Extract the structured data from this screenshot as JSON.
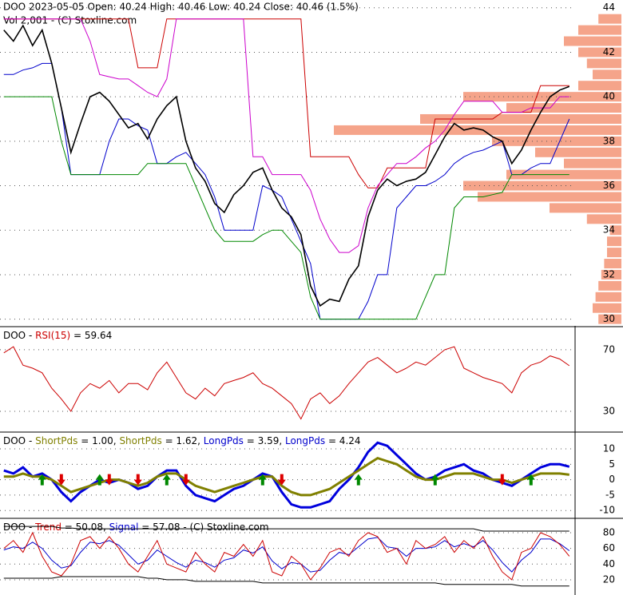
{
  "chart_data": [
    {
      "type": "line",
      "title": "DOO  2023-05-05 Open: 40.24  High: 40.46  Low: 40.24  Close: 40.46 (1.5%)",
      "subtitle": "Vol 2,001  -  (C) Stoxline.com",
      "x": [
        0,
        1,
        2,
        3,
        4,
        5,
        6,
        7,
        8,
        9,
        10,
        11,
        12,
        13,
        14,
        15,
        16,
        17,
        18,
        19,
        20,
        21,
        22,
        23,
        24,
        25,
        26,
        27,
        28,
        29,
        30,
        31,
        32,
        33,
        34,
        35,
        36,
        37,
        38,
        39,
        40,
        41,
        42,
        43,
        44,
        45,
        46,
        47,
        48,
        49,
        50,
        51,
        52,
        53,
        54,
        55,
        56,
        57,
        58,
        59
      ],
      "xlim": [
        -0.4,
        59.6
      ],
      "ylim": [
        29.7,
        44.35
      ],
      "yticks": [
        30,
        32,
        34,
        36,
        38,
        40,
        42,
        44
      ],
      "grid": true,
      "volume_profile": {
        "color": "#f5a48a",
        "lim": [
          0,
          100
        ],
        "levels": [
          30,
          30.5,
          31,
          31.5,
          32,
          32.5,
          33,
          33.5,
          34,
          34.5,
          35,
          35.5,
          36,
          36.5,
          37,
          37.5,
          38,
          38.5,
          39,
          39.5,
          40,
          40.5,
          41,
          41.5,
          42,
          42.5,
          43,
          43.5
        ],
        "values": [
          8,
          10,
          9,
          8,
          7,
          6,
          5,
          5,
          4,
          12,
          25,
          50,
          55,
          40,
          20,
          30,
          45,
          100,
          70,
          40,
          55,
          15,
          10,
          12,
          15,
          20,
          15,
          8
        ]
      },
      "series": [
        {
          "color": "#cc0000",
          "width": 1,
          "values": [
            43.5,
            43.5,
            43.5,
            43.5,
            43.5,
            43.5,
            43.5,
            43.5,
            43.5,
            43.5,
            43.5,
            43.5,
            43.5,
            43.5,
            41.3,
            41.3,
            41.3,
            43.5,
            43.5,
            43.5,
            43.5,
            43.5,
            43.5,
            43.5,
            43.5,
            43.5,
            43.5,
            43.5,
            43.5,
            43.5,
            43.5,
            43.5,
            37.3,
            37.3,
            37.3,
            37.3,
            37.3,
            36.5,
            35.9,
            35.9,
            36.8,
            36.8,
            36.8,
            36.8,
            36.8,
            39,
            39,
            39,
            39,
            39,
            39,
            39,
            39.3,
            39.3,
            39.3,
            39.3,
            40.5,
            40.5,
            40.5,
            40.5
          ]
        },
        {
          "color": "#cc00cc",
          "width": 1,
          "values": [
            43.5,
            43.5,
            43.5,
            43.5,
            43.5,
            43.5,
            43.5,
            43.5,
            43.5,
            42.5,
            41,
            40.9,
            40.8,
            40.8,
            40.5,
            40.2,
            40,
            40.8,
            43.5,
            43.5,
            43.5,
            43.5,
            43.5,
            43.5,
            43.5,
            43.5,
            37.3,
            37.3,
            36.5,
            36.5,
            36.5,
            36.5,
            35.8,
            34.5,
            33.6,
            33,
            33,
            33.3,
            35,
            36,
            36.5,
            37,
            37,
            37.3,
            37.7,
            38,
            38.5,
            39.2,
            39.8,
            39.8,
            39.8,
            39.8,
            39.3,
            39.3,
            39.3,
            39.5,
            39.5,
            39.5,
            40,
            40
          ]
        },
        {
          "color": "#0000cc",
          "width": 1,
          "values": [
            41,
            41,
            41.2,
            41.3,
            41.5,
            41.5,
            39.5,
            36.5,
            36.5,
            36.5,
            36.5,
            38,
            39,
            39,
            38.7,
            38.5,
            37,
            37,
            37.3,
            37.5,
            37,
            36.5,
            35.5,
            34,
            34,
            34,
            34,
            36,
            35.8,
            35.5,
            34.5,
            33.5,
            32.5,
            30,
            30,
            30,
            30,
            30,
            30.8,
            32,
            32,
            35,
            35.5,
            36,
            36,
            36.2,
            36.5,
            37,
            37.3,
            37.5,
            37.6,
            37.8,
            38,
            36.5,
            36.5,
            36.8,
            37,
            37,
            38,
            39
          ]
        },
        {
          "color": "#008800",
          "width": 1,
          "values": [
            40,
            40,
            40,
            40,
            40,
            40,
            38,
            36.5,
            36.5,
            36.5,
            36.5,
            36.5,
            36.5,
            36.5,
            36.5,
            37,
            37,
            37,
            37,
            37,
            36,
            35,
            34,
            33.5,
            33.5,
            33.5,
            33.5,
            33.8,
            34,
            34,
            33.5,
            33,
            31,
            30,
            30,
            30,
            30,
            30,
            30,
            30,
            30,
            30,
            30,
            30,
            31,
            32,
            32,
            35,
            35.5,
            35.5,
            35.5,
            35.6,
            35.7,
            36.5,
            36.5,
            36.5,
            36.5,
            36.5,
            36.5,
            36.5
          ]
        },
        {
          "color": "#000000",
          "width": 1.6,
          "values": [
            43,
            42.5,
            43.2,
            42.3,
            43,
            41.5,
            39.5,
            37.5,
            38.8,
            40,
            40.2,
            39.8,
            39.2,
            38.6,
            38.8,
            38.1,
            39,
            39.6,
            40,
            38,
            36.8,
            36.2,
            35.2,
            34.8,
            35.6,
            36,
            36.6,
            36.8,
            35.8,
            35,
            34.6,
            33.8,
            31.5,
            30.6,
            30.9,
            30.8,
            31.8,
            32.4,
            34.6,
            35.8,
            36.3,
            36,
            36.2,
            36.3,
            36.6,
            37.4,
            38.2,
            38.8,
            38.5,
            38.6,
            38.5,
            38.2,
            38,
            37,
            37.6,
            38.5,
            39.3,
            40,
            40.3,
            40.46
          ]
        }
      ]
    },
    {
      "type": "line",
      "header": [
        {
          "text": "DOO - ",
          "color": "#000000"
        },
        {
          "text": "RSI(15)",
          "color": "#cc0000"
        },
        {
          "text": " = 59.64",
          "color": "#000000"
        }
      ],
      "x": [
        0,
        1,
        2,
        3,
        4,
        5,
        6,
        7,
        8,
        9,
        10,
        11,
        12,
        13,
        14,
        15,
        16,
        17,
        18,
        19,
        20,
        21,
        22,
        23,
        24,
        25,
        26,
        27,
        28,
        29,
        30,
        31,
        32,
        33,
        34,
        35,
        36,
        37,
        38,
        39,
        40,
        41,
        42,
        43,
        44,
        45,
        46,
        47,
        48,
        49,
        50,
        51,
        52,
        53,
        54,
        55,
        56,
        57,
        58,
        59
      ],
      "xlim": [
        -0.4,
        59.6
      ],
      "ylim": [
        17,
        84.5
      ],
      "yticks": [
        30,
        70
      ],
      "grid": true,
      "series": [
        {
          "color": "#cc0000",
          "width": 1,
          "values": [
            68,
            72,
            60,
            58,
            55,
            45,
            38,
            30,
            42,
            48,
            45,
            50,
            42,
            48,
            48,
            44,
            55,
            62,
            52,
            42,
            38,
            45,
            40,
            48,
            50,
            52,
            55,
            48,
            45,
            40,
            35,
            25,
            38,
            42,
            35,
            40,
            48,
            55,
            62,
            65,
            60,
            55,
            58,
            62,
            60,
            65,
            70,
            72,
            58,
            55,
            52,
            50,
            48,
            42,
            55,
            60,
            62,
            66,
            64,
            59.64
          ]
        }
      ]
    },
    {
      "type": "line",
      "header": [
        {
          "text": "DOO - ",
          "color": "#000000"
        },
        {
          "text": "ShortPds",
          "color": "#808000"
        },
        {
          "text": " = 1.00, ",
          "color": "#000000"
        },
        {
          "text": "ShortPds",
          "color": "#808000"
        },
        {
          "text": " = 1.62, ",
          "color": "#000000"
        },
        {
          "text": "LongPds",
          "color": "#0000cc"
        },
        {
          "text": " = 3.59, ",
          "color": "#000000"
        },
        {
          "text": "LongPds",
          "color": "#0000cc"
        },
        {
          "text": " = 4.24",
          "color": "#000000"
        }
      ],
      "x": [
        0,
        1,
        2,
        3,
        4,
        5,
        6,
        7,
        8,
        9,
        10,
        11,
        12,
        13,
        14,
        15,
        16,
        17,
        18,
        19,
        20,
        21,
        22,
        23,
        24,
        25,
        26,
        27,
        28,
        29,
        30,
        31,
        32,
        33,
        34,
        35,
        36,
        37,
        38,
        39,
        40,
        41,
        42,
        43,
        44,
        45,
        46,
        47,
        48,
        49,
        50,
        51,
        52,
        53,
        54,
        55,
        56,
        57,
        58,
        59
      ],
      "xlim": [
        -0.4,
        59.6
      ],
      "ylim": [
        -12.8,
        15.2
      ],
      "yticks": [
        10,
        5,
        0,
        -5,
        -10
      ],
      "grid": true,
      "up_color": "#008800",
      "down_color": "#dd0000",
      "series": [
        {
          "color": "#0000dd",
          "width": 3,
          "values": [
            3,
            2,
            4,
            1,
            2,
            0,
            -4,
            -7,
            -4,
            -2,
            0,
            -1,
            0,
            -1,
            -3,
            -2,
            1,
            3,
            3,
            -2,
            -5,
            -6,
            -7,
            -5,
            -3,
            -2,
            0,
            2,
            1,
            -4,
            -8,
            -9,
            -9,
            -8,
            -7,
            -3,
            0,
            4,
            9,
            12,
            11,
            8,
            5,
            2,
            0,
            1,
            3,
            4,
            5,
            3,
            2,
            0,
            -1,
            -2,
            0,
            2,
            4,
            5,
            5,
            4.24
          ]
        },
        {
          "color": "#808000",
          "width": 3,
          "values": [
            1,
            1,
            2,
            1,
            1,
            0,
            -2,
            -4,
            -3,
            -2,
            -1,
            0,
            0,
            -1,
            -2,
            -1,
            1,
            2,
            2,
            0,
            -2,
            -3,
            -4,
            -3,
            -2,
            -1,
            0,
            1,
            1,
            -2,
            -4,
            -5,
            -5,
            -4,
            -3,
            -1,
            1,
            3,
            5,
            7,
            6,
            5,
            3,
            1,
            0,
            0,
            1,
            2,
            2,
            2,
            1,
            0,
            0,
            -1,
            0,
            1,
            2,
            2,
            2,
            1.62
          ]
        }
      ]
    },
    {
      "type": "line",
      "header": [
        {
          "text": "DOO - ",
          "color": "#000000"
        },
        {
          "text": "Trend",
          "color": "#cc0000"
        },
        {
          "text": " = 50.08, ",
          "color": "#000000"
        },
        {
          "text": "Signal",
          "color": "#0000cc"
        },
        {
          "text": " = 57.08 - (C) Stoxline.com",
          "color": "#000000"
        }
      ],
      "x": [
        0,
        1,
        2,
        3,
        4,
        5,
        6,
        7,
        8,
        9,
        10,
        11,
        12,
        13,
        14,
        15,
        16,
        17,
        18,
        19,
        20,
        21,
        22,
        23,
        24,
        25,
        26,
        27,
        28,
        29,
        30,
        31,
        32,
        33,
        34,
        35,
        36,
        37,
        38,
        39,
        40,
        41,
        42,
        43,
        44,
        45,
        46,
        47,
        48,
        49,
        50,
        51,
        52,
        53,
        54,
        55,
        56,
        57,
        58,
        59
      ],
      "xlim": [
        -0.4,
        59.6
      ],
      "ylim": [
        0.6,
        97.3
      ],
      "yticks": [
        80,
        60,
        40,
        20
      ],
      "grid": true,
      "series": [
        {
          "color": "#000000",
          "width": 1,
          "values": [
            88,
            88,
            88,
            88,
            88,
            88,
            86,
            86,
            85,
            85,
            85,
            85,
            85,
            85,
            85,
            85,
            85,
            85,
            85,
            85,
            85,
            85,
            85,
            85,
            85,
            85,
            85,
            85,
            85,
            85,
            85,
            85,
            85,
            85,
            85,
            85,
            85,
            85,
            85,
            85,
            85,
            85,
            85,
            85,
            85,
            85,
            85,
            85,
            85,
            85,
            82,
            82,
            82,
            82,
            82,
            82,
            82,
            82,
            82,
            82
          ]
        },
        {
          "color": "#000000",
          "width": 1,
          "values": [
            22,
            22,
            22,
            22,
            22,
            22,
            24,
            24,
            24,
            24,
            24,
            24,
            24,
            24,
            24,
            22,
            22,
            20,
            20,
            20,
            18,
            18,
            18,
            18,
            18,
            18,
            18,
            16,
            16,
            16,
            16,
            16,
            16,
            16,
            16,
            16,
            16,
            16,
            16,
            16,
            16,
            16,
            16,
            16,
            16,
            16,
            14,
            14,
            14,
            14,
            14,
            14,
            14,
            14,
            12,
            12,
            12,
            12,
            12,
            12
          ]
        },
        {
          "color": "#0000cc",
          "width": 1,
          "values": [
            58,
            62,
            60,
            68,
            60,
            45,
            35,
            38,
            55,
            68,
            66,
            70,
            64,
            52,
            40,
            45,
            58,
            50,
            42,
            36,
            45,
            42,
            36,
            45,
            48,
            58,
            54,
            62,
            44,
            34,
            42,
            40,
            30,
            32,
            45,
            55,
            52,
            62,
            72,
            74,
            62,
            60,
            50,
            60,
            60,
            62,
            70,
            62,
            66,
            62,
            70,
            58,
            42,
            30,
            45,
            55,
            72,
            72,
            66,
            57.08
          ]
        },
        {
          "color": "#cc0000",
          "width": 1,
          "values": [
            60,
            70,
            55,
            80,
            50,
            30,
            25,
            40,
            70,
            75,
            60,
            75,
            60,
            40,
            30,
            50,
            70,
            40,
            35,
            30,
            55,
            40,
            30,
            55,
            50,
            65,
            50,
            70,
            30,
            25,
            50,
            40,
            20,
            35,
            55,
            60,
            50,
            70,
            80,
            75,
            55,
            60,
            40,
            70,
            60,
            65,
            75,
            55,
            70,
            60,
            75,
            50,
            30,
            20,
            55,
            60,
            80,
            75,
            65,
            50.08
          ]
        }
      ]
    }
  ]
}
